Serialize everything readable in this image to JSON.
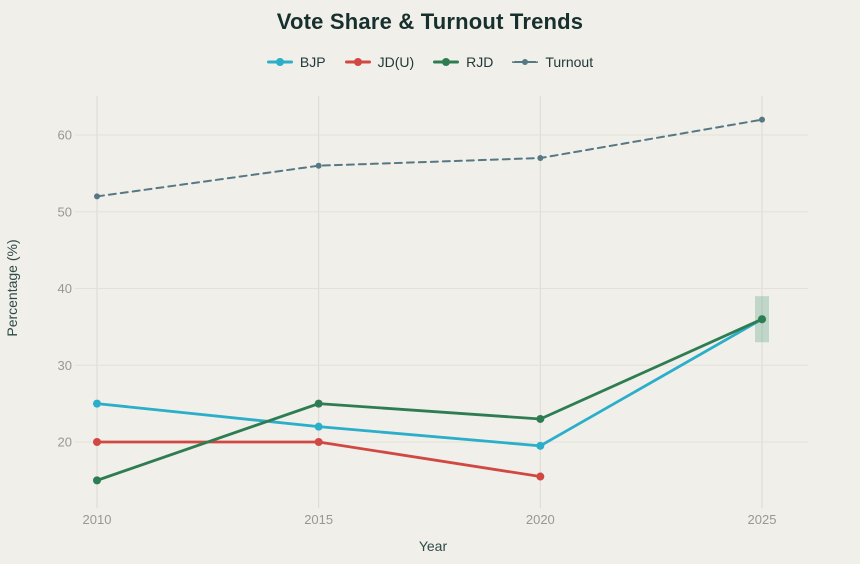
{
  "page": {
    "background": "#f0efe9"
  },
  "chart_data": {
    "type": "line",
    "title": "Vote Share & Turnout Trends",
    "xlabel": "Year",
    "ylabel": "Percentage (%)",
    "x": [
      2010,
      2015,
      2020,
      2025
    ],
    "xticks": [
      "2010",
      "2015",
      "2020",
      "2025"
    ],
    "yticks": [
      20,
      30,
      40,
      50,
      60
    ],
    "xlim": [
      2008.6,
      2026.5
    ],
    "ylim": [
      12,
      66
    ],
    "grid": true,
    "legend_position": "top-center",
    "series": [
      {
        "name": "BJP",
        "color": "#2aaec9",
        "style": "solid",
        "values": [
          25,
          22,
          19.5,
          36
        ]
      },
      {
        "name": "JD(U)",
        "color": "#d14843",
        "style": "solid",
        "values": [
          20,
          20,
          15.5,
          null
        ]
      },
      {
        "name": "RJD",
        "color": "#2e7d52",
        "style": "solid",
        "values": [
          15,
          25,
          23,
          36
        ]
      },
      {
        "name": "Turnout",
        "color": "#567884",
        "style": "dashed",
        "values": [
          52,
          56,
          57,
          62
        ]
      }
    ],
    "annotations": [
      {
        "type": "band",
        "x": 2025,
        "y_from": 33,
        "y_to": 39,
        "color": "#2f8a6a",
        "opacity": 0.25
      }
    ],
    "colors": {
      "title": "#17302e",
      "tick_labels": "#9a978f",
      "axis_labels": "#2f4a48",
      "gridline_h": "#e2e0d9",
      "gridline_v": "#dcdad3"
    }
  }
}
